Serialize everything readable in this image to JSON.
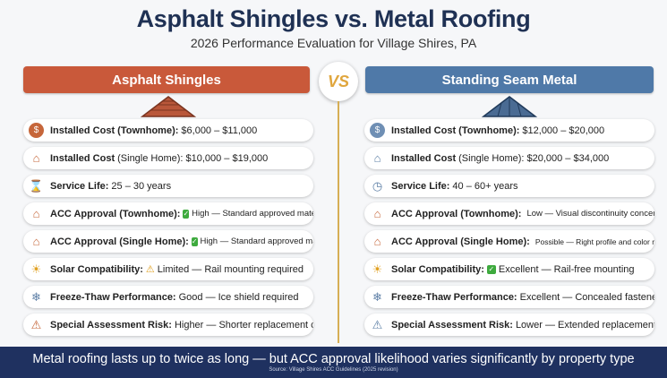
{
  "header": {
    "title": "Asphalt Shingles vs. Metal Roofing",
    "subtitle": "2026 Performance Evaluation for Village Shires, PA"
  },
  "vs_label": "VS",
  "left": {
    "heading": "Asphalt Shingles",
    "rows": [
      {
        "icon": "dollar-icon",
        "label": "Installed Cost (Townhome):",
        "value": "$6,000 – $11,000"
      },
      {
        "icon": "house-icon",
        "label": "Installed Cost",
        "label_suffix": "(Single Home):",
        "value": "$10,000 – $19,000"
      },
      {
        "icon": "hourglass-icon",
        "label": "Service Life:",
        "value": "25 – 30 years"
      },
      {
        "icon": "approval-house-icon",
        "label": "ACC Approval (Townhome):",
        "status_icon": "check-icon",
        "value": "High — Standard approved material"
      },
      {
        "icon": "approval-house-icon",
        "label": "ACC Approval (Single Home):",
        "status_icon": "check-icon",
        "value": "High — Standard approved material"
      },
      {
        "icon": "sun-icon",
        "label": "Solar Compatibility:",
        "status_icon": "warning-icon",
        "value": "Limited — Rail mounting required"
      },
      {
        "icon": "snowflake-icon",
        "label": "Freeze-Thaw Performance:",
        "value": "Good — Ice shield required"
      },
      {
        "icon": "warning-icon",
        "label": "Special Assessment Risk:",
        "value": "Higher — Shorter replacement cycle"
      }
    ]
  },
  "right": {
    "heading": "Standing Seam Metal",
    "rows": [
      {
        "icon": "dollar-icon",
        "label": "Installed Cost (Townhome):",
        "value": "$12,000 – $20,000"
      },
      {
        "icon": "house-icon",
        "label": "Installed Cost",
        "label_suffix": "(Single Home):",
        "value": "$20,000 – $34,000"
      },
      {
        "icon": "clock-icon",
        "label": "Service Life:",
        "value": "40 – 60+ years"
      },
      {
        "icon": "approval-house-icon",
        "label": "ACC Approval (Townhome):",
        "status_icon": "red-dot-icon",
        "value": "Low — Visual discontinuity concern"
      },
      {
        "icon": "approval-house-icon",
        "label": "ACC Approval (Single Home):",
        "status_icon": "yellow-dot-icon",
        "value": "Possible — Right profile and color required"
      },
      {
        "icon": "sun-icon",
        "label": "Solar Compatibility:",
        "status_icon": "check-icon",
        "value": "Excellent — Rail-free mounting"
      },
      {
        "icon": "snowflake-icon",
        "label": "Freeze-Thaw Performance:",
        "value": "Excellent — Concealed fasteners"
      },
      {
        "icon": "warning-icon",
        "label": "Special Assessment Risk:",
        "value": "Lower — Extended replacement cycle"
      }
    ]
  },
  "footer": {
    "message": "Metal roofing lasts up to twice as long — but ACC approval likelihood varies significantly by property type",
    "source": "Source: Village Shires ACC Guidelines (2025 revision)"
  },
  "colors": {
    "asphalt": "#c9593a",
    "metal": "#4f79a8",
    "title": "#1f3154",
    "footer": "#1f3160",
    "vs": "#e0a63d"
  }
}
